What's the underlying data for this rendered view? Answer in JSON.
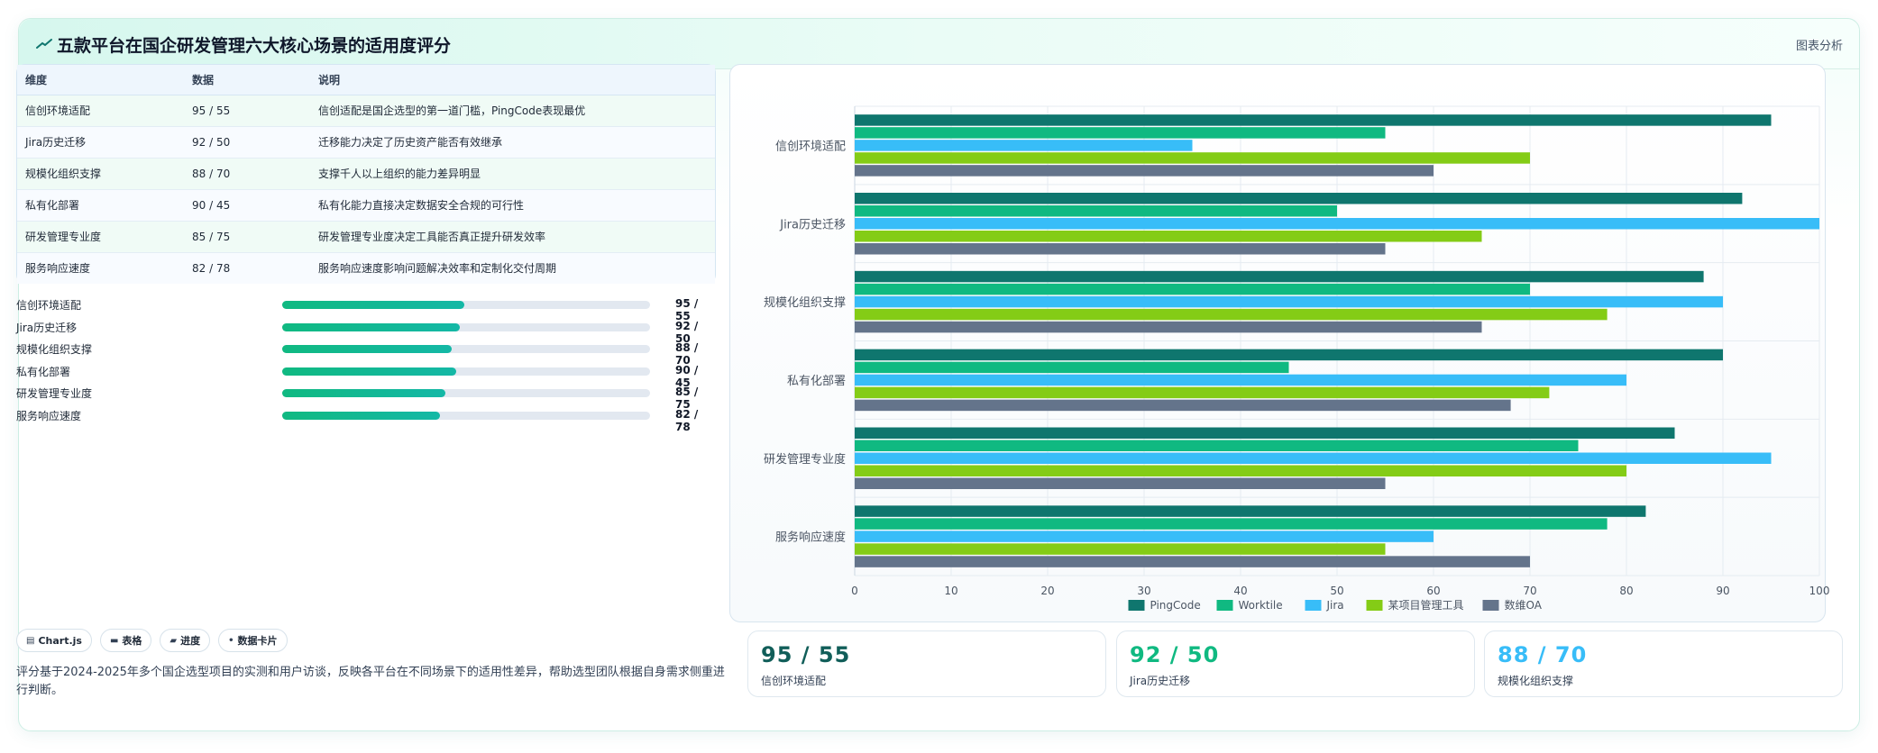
{
  "header": {
    "title": "五款平台在国企研发管理六大核心场景的适用度评分",
    "action": "图表分析"
  },
  "table": {
    "columns": [
      "维度",
      "数据",
      "说明"
    ],
    "rows": [
      {
        "dim": "信创环境适配",
        "data": "95 / 55",
        "desc": "信创适配是国企选型的第一道门槛，PingCode表现最优"
      },
      {
        "dim": "Jira历史迁移",
        "data": "92 / 50",
        "desc": "迁移能力决定了历史资产能否有效继承"
      },
      {
        "dim": "规模化组织支撑",
        "data": "88 / 70",
        "desc": "支撑千人以上组织的能力差异明显"
      },
      {
        "dim": "私有化部署",
        "data": "90 / 45",
        "desc": "私有化能力直接决定数据安全合规的可行性"
      },
      {
        "dim": "研发管理专业度",
        "data": "85 / 75",
        "desc": "研发管理专业度决定工具能否真正提升研发效率"
      },
      {
        "dim": "服务响应速度",
        "data": "82 / 78",
        "desc": "服务响应速度影响问题解决效率和定制化交付周期"
      }
    ]
  },
  "progress": [
    {
      "label": "信创环境适配",
      "value": "95 / 55",
      "fraction": 0.495
    },
    {
      "label": "Jira历史迁移",
      "value": "92 / 50",
      "fraction": 0.483
    },
    {
      "label": "规模化组织支撑",
      "value": "88 / 70",
      "fraction": 0.461
    },
    {
      "label": "私有化部署",
      "value": "90 / 45",
      "fraction": 0.472
    },
    {
      "label": "研发管理专业度",
      "value": "85 / 75",
      "fraction": 0.444
    },
    {
      "label": "服务响应速度",
      "value": "82 / 78",
      "fraction": 0.43
    }
  ],
  "tags": [
    {
      "icon": "chart-icon",
      "glyph": "▤",
      "label": "Chart.js"
    },
    {
      "icon": "table-icon",
      "glyph": "▬",
      "label": "表格"
    },
    {
      "icon": "progress-icon",
      "glyph": "▰",
      "label": "进度"
    },
    {
      "icon": "dot-icon",
      "glyph": "•",
      "label": "数据卡片"
    }
  ],
  "note": "评分基于2024-2025年多个国企选型项目的实测和用户访谈，反映各平台在不同场景下的适用性差异，帮助选型团队根据自身需求侧重进行判断。",
  "stats": [
    {
      "value": "95 / 55",
      "label": "信创环境适配",
      "color": "#115e59"
    },
    {
      "value": "92 / 50",
      "label": "Jira历史迁移",
      "color": "#10b981"
    },
    {
      "value": "88 / 70",
      "label": "规模化组织支撑",
      "color": "#38bdf8"
    }
  ],
  "chart_data": {
    "type": "bar",
    "orientation": "horizontal",
    "categories": [
      "信创环境适配",
      "Jira历史迁移",
      "规模化组织支撑",
      "私有化部署",
      "研发管理专业度",
      "服务响应速度"
    ],
    "series": [
      {
        "name": "PingCode",
        "color": "#0f766e",
        "values": [
          95,
          92,
          88,
          90,
          85,
          82
        ]
      },
      {
        "name": "Worktile",
        "color": "#10b981",
        "values": [
          55,
          50,
          70,
          45,
          75,
          78
        ]
      },
      {
        "name": "Jira",
        "color": "#38bdf8",
        "values": [
          35,
          100,
          90,
          80,
          95,
          60
        ]
      },
      {
        "name": "某项目管理工具",
        "color": "#84cc16",
        "values": [
          70,
          65,
          78,
          72,
          80,
          55
        ]
      },
      {
        "name": "数维OA",
        "color": "#64748b",
        "values": [
          60,
          55,
          65,
          68,
          55,
          70
        ]
      }
    ],
    "xlim": [
      0,
      100
    ],
    "xticks": [
      "0",
      "10",
      "20",
      "30",
      "40",
      "50",
      "60",
      "70",
      "80",
      "90",
      "100"
    ],
    "grid": true,
    "legend": "bottom"
  }
}
